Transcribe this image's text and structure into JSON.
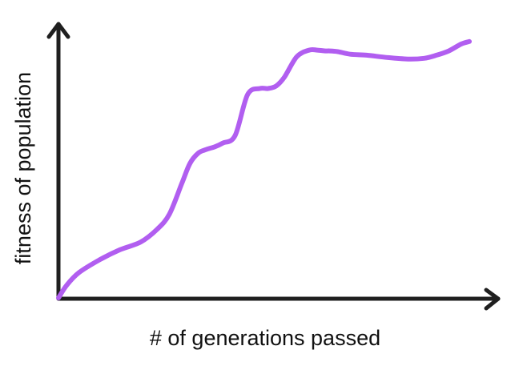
{
  "chart_data": {
    "type": "line",
    "title": "",
    "xlabel": "# of generations passed",
    "ylabel": "fitness of population",
    "xticks": [],
    "yticks": [],
    "grid": false,
    "legend": "none",
    "xlim": [
      0,
      100
    ],
    "ylim": [
      0,
      100
    ],
    "series": [
      {
        "color": "#b15ef0",
        "x": [
          0,
          2,
          5,
          10,
          15,
          20,
          24,
          27,
          30,
          32,
          34,
          36,
          38,
          40,
          43,
          46,
          49,
          51,
          53,
          55,
          58,
          61,
          63,
          65,
          66,
          68,
          71,
          75,
          80,
          85,
          89,
          92,
          95,
          98,
          100
        ],
        "y": [
          0,
          5,
          10,
          15,
          19,
          22,
          27,
          33,
          45,
          53,
          57,
          58.5,
          59.5,
          61,
          64,
          80,
          82.5,
          82.5,
          83.5,
          87,
          95,
          97.6,
          97.6,
          97.3,
          97.3,
          97,
          96,
          95.6,
          94.7,
          94.1,
          94.4,
          95.6,
          97.3,
          100,
          101
        ]
      }
    ]
  }
}
